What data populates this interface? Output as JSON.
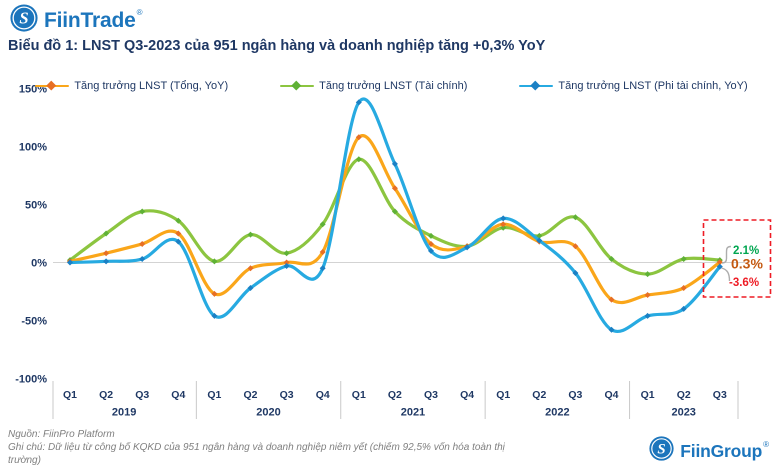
{
  "header": {
    "brand": "FiinTrade",
    "registered": "®",
    "title": "Biểu đồ 1: LNST Q3-2023 của 951 ngân hàng và doanh nghiệp tăng +0,3% YoY",
    "brand_color": "#1C75BC",
    "title_color": "#1F3864"
  },
  "legend": [
    {
      "label": "Tăng trưởng LNST (Tổng, YoY)",
      "color": "#FAA61A",
      "marker_color": "#E76F24"
    },
    {
      "label": "Tăng trưởng LNST (Tài chính)",
      "color": "#8CC540",
      "marker_color": "#5FB136"
    },
    {
      "label": "Tăng trưởng LNST (Phi tài chính, YoY)",
      "color": "#27AAE1",
      "marker_color": "#1B80C4"
    }
  ],
  "chart_data": {
    "type": "line",
    "smooth": true,
    "x_quarters": [
      "Q1",
      "Q2",
      "Q3",
      "Q4",
      "Q1",
      "Q2",
      "Q3",
      "Q4",
      "Q1",
      "Q2",
      "Q3",
      "Q4",
      "Q1",
      "Q2",
      "Q3",
      "Q4",
      "Q1",
      "Q2",
      "Q3"
    ],
    "year_groups": [
      {
        "label": "2019",
        "quarters": 4
      },
      {
        "label": "2020",
        "quarters": 4
      },
      {
        "label": "2021",
        "quarters": 4
      },
      {
        "label": "2022",
        "quarters": 4
      },
      {
        "label": "2023",
        "quarters": 3
      }
    ],
    "ylim": [
      -100,
      150
    ],
    "yticks": [
      {
        "label": "150%",
        "value": 150
      },
      {
        "label": "100%",
        "value": 100
      },
      {
        "label": "50%",
        "value": 50
      },
      {
        "label": "0%",
        "value": 0
      },
      {
        "label": "-50%",
        "value": -50
      },
      {
        "label": "-100%",
        "value": -100
      }
    ],
    "grid": "zero-line-only",
    "legend_position": "top",
    "axis_text_color": "#1F3864",
    "series": [
      {
        "name": "Tăng trưởng LNST (Tổng, YoY)",
        "color": "#FAA61A",
        "marker_color": "#E76F24",
        "values": [
          1,
          8,
          16,
          25,
          -27,
          -5,
          0,
          9,
          108,
          64,
          16,
          14,
          33,
          18,
          14,
          -32,
          -28,
          -22,
          0.3
        ]
      },
      {
        "name": "Tăng trưởng LNST (Tài chính)",
        "color": "#8CC540",
        "marker_color": "#5FB136",
        "values": [
          2,
          25,
          44,
          36,
          1,
          24,
          8,
          33,
          89,
          44,
          23,
          14,
          30,
          23,
          39,
          3,
          -10,
          3,
          2.1
        ]
      },
      {
        "name": "Tăng trưởng LNST (Phi tài chính, YoY)",
        "color": "#27AAE1",
        "marker_color": "#1B80C4",
        "values": [
          0,
          1,
          3,
          18,
          -46,
          -22,
          -3,
          -5,
          138,
          85,
          10,
          13,
          38,
          19,
          -9,
          -58,
          -46,
          -40,
          -3.6
        ]
      }
    ],
    "annotation": {
      "box_color": "#EE1C25",
      "labels": [
        {
          "text": "2.1%",
          "color": "#00A650"
        },
        {
          "text": "0.3%",
          "color": "#C45911"
        },
        {
          "text": "-3.6%",
          "color": "#EE1C25"
        }
      ]
    }
  },
  "footer": {
    "source": "Nguồn: FiinPro Platform",
    "note": "Ghi chú: Dữ liệu từ công bố KQKD của 951 ngân hàng và doanh nghiệp niêm yết (chiếm 92,5% vốn hóa toàn thị trường)",
    "brand": "FiinGroup",
    "registered": "®"
  }
}
